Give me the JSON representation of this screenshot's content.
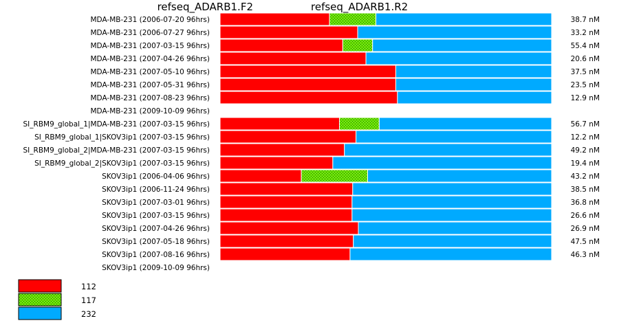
{
  "chart_data": {
    "type": "bar",
    "title_left": "refseq_ADARB1.F2",
    "title_right": "refseq_ADARB1.R2",
    "colors": {
      "112": "#ff0000",
      "117": "#66dd00",
      "232": "#00aaff"
    },
    "legend": [
      "112",
      "117",
      "232"
    ],
    "rows": [
      {
        "label": "MDA-MB-231 (2006-07-20 96hrs)",
        "seg112": 0.33,
        "seg117": 0.14,
        "seg232": 0.53,
        "value": "38.7 nM"
      },
      {
        "label": "MDA-MB-231 (2006-07-27 96hrs)",
        "seg112": 0.415,
        "seg117": 0,
        "seg232": 0.585,
        "value": "33.2 nM"
      },
      {
        "label": "MDA-MB-231 (2007-03-15 96hrs)",
        "seg112": 0.37,
        "seg117": 0.09,
        "seg232": 0.54,
        "value": "55.4 nM"
      },
      {
        "label": "MDA-MB-231 (2007-04-26 96hrs)",
        "seg112": 0.44,
        "seg117": 0,
        "seg232": 0.56,
        "value": "20.6 nM"
      },
      {
        "label": "MDA-MB-231 (2007-05-10 96hrs)",
        "seg112": 0.53,
        "seg117": 0,
        "seg232": 0.47,
        "value": "37.5 nM"
      },
      {
        "label": "MDA-MB-231 (2007-05-31 96hrs)",
        "seg112": 0.53,
        "seg117": 0,
        "seg232": 0.47,
        "value": "23.5 nM"
      },
      {
        "label": "MDA-MB-231 (2007-08-23 96hrs)",
        "seg112": 0.535,
        "seg117": 0,
        "seg232": 0.465,
        "value": "12.9 nM"
      },
      {
        "label": "MDA-MB-231 (2009-10-09 96hrs)",
        "seg112": 0,
        "seg117": 0,
        "seg232": 0,
        "value": ""
      },
      {
        "label": "SI_RBM9_global_1|MDA-MB-231 (2007-03-15 96hrs)",
        "seg112": 0.36,
        "seg117": 0.12,
        "seg232": 0.52,
        "value": "56.7 nM"
      },
      {
        "label": "SI_RBM9_global_1|SKOV3ip1 (2007-03-15 96hrs)",
        "seg112": 0.41,
        "seg117": 0,
        "seg232": 0.59,
        "value": "12.2 nM"
      },
      {
        "label": "SI_RBM9_global_2|MDA-MB-231 (2007-03-15 96hrs)",
        "seg112": 0.375,
        "seg117": 0,
        "seg232": 0.625,
        "value": "49.2 nM"
      },
      {
        "label": "SI_RBM9_global_2|SKOV3ip1 (2007-03-15 96hrs)",
        "seg112": 0.34,
        "seg117": 0,
        "seg232": 0.66,
        "value": "19.4 nM"
      },
      {
        "label": "SKOV3ip1 (2006-04-06 96hrs)",
        "seg112": 0.245,
        "seg117": 0.2,
        "seg232": 0.555,
        "value": "43.2 nM"
      },
      {
        "label": "SKOV3ip1 (2006-11-24 96hrs)",
        "seg112": 0.4,
        "seg117": 0,
        "seg232": 0.6,
        "value": "38.5 nM"
      },
      {
        "label": "SKOV3ip1 (2007-03-01 96hrs)",
        "seg112": 0.398,
        "seg117": 0,
        "seg232": 0.602,
        "value": "36.8 nM"
      },
      {
        "label": "SKOV3ip1 (2007-03-15 96hrs)",
        "seg112": 0.398,
        "seg117": 0,
        "seg232": 0.602,
        "value": "26.6 nM"
      },
      {
        "label": "SKOV3ip1 (2007-04-26 96hrs)",
        "seg112": 0.417,
        "seg117": 0,
        "seg232": 0.583,
        "value": "26.9 nM"
      },
      {
        "label": "SKOV3ip1 (2007-05-18 96hrs)",
        "seg112": 0.402,
        "seg117": 0,
        "seg232": 0.598,
        "value": "47.5 nM"
      },
      {
        "label": "SKOV3ip1 (2007-08-16 96hrs)",
        "seg112": 0.392,
        "seg117": 0,
        "seg232": 0.608,
        "value": "46.3 nM"
      },
      {
        "label": "SKOV3ip1 (2009-10-09 96hrs)",
        "seg112": 0,
        "seg117": 0,
        "seg232": 0,
        "value": ""
      }
    ]
  }
}
